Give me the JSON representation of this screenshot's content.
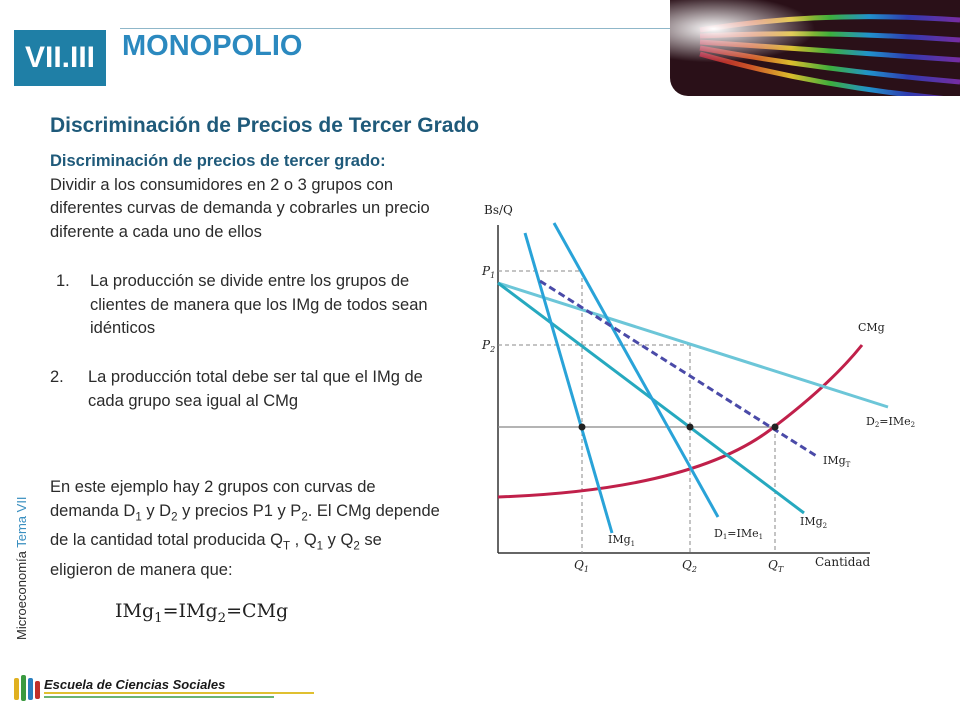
{
  "header": {
    "badge": "VII.III",
    "title": "MONOPOLIO"
  },
  "side_label": {
    "course": "Microeconomía ",
    "topic": "Tema VII"
  },
  "content": {
    "subtitle": "Discriminación de Precios de Tercer Grado",
    "definition_lead": "Discriminación de precios de tercer grado:",
    "definition_text": "Dividir a los consumidores en 2 o 3 grupos con diferentes curvas de demanda y cobrarles un precio diferente a cada uno de ellos",
    "item1_num": "1.",
    "item1_text": "La producción se divide entre los grupos de clientes de manera que los IMg de todos sean idénticos",
    "item2_num": "2.",
    "item2_text": "La producción total debe ser tal que el IMg de cada grupo sea igual al CMg",
    "example": {
      "t1": "En este ejemplo hay 2 grupos con curvas de demanda D",
      "s1": "1",
      "t2": " y D",
      "s2": "2",
      "t3": " y precios P1 y P",
      "s3": "2",
      "t4": ". El CMg depende de la cantidad total producida Q",
      "s4": "T",
      "t5": " , Q",
      "s5": "1",
      "t6": " y Q",
      "s6": "2",
      "t7": " se eligieron de manera que:"
    },
    "equation": {
      "a": "IMg",
      "a_sub": "1",
      "eq1": "=IMg",
      "b_sub": "2",
      "eq2": "=CMg"
    }
  },
  "chart": {
    "y_axis_label": "Bs/Q",
    "x_axis_label": "Cantidad",
    "p1": "P",
    "p1_sub": "1",
    "p2": "P",
    "p2_sub": "2",
    "q1": "Q",
    "q1_sub": "1",
    "q2": "Q",
    "q2_sub": "2",
    "qt": "Q",
    "qt_sub": "T",
    "cmg": "CMg",
    "d2": "D",
    "d2_sub": "2",
    "d2_tail": "=IMe",
    "d2_tail_sub": "2",
    "imgt": "IMg",
    "imgt_sub": "T",
    "img2": "IMg",
    "img2_sub": "2",
    "d1": "D",
    "d1_sub": "1",
    "d1_tail": "=IMe",
    "d1_tail_sub": "1",
    "img1": "IMg",
    "img1_sub": "1",
    "colors": {
      "axes": "#333333",
      "cmg": "#c0204a",
      "d2": "#6cc6d8",
      "img2": "#26a9bf",
      "d1": "#29a3d8",
      "img1": "#29a3d8",
      "imgt": "#4a4aa8",
      "guides": "#888888"
    }
  },
  "footer": {
    "school": "Escuela de Ciencias Sociales"
  }
}
